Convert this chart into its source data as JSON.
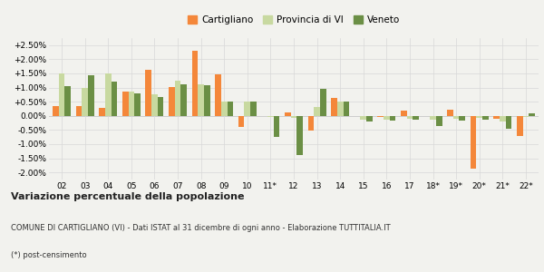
{
  "years": [
    "02",
    "03",
    "04",
    "05",
    "06",
    "07",
    "08",
    "09",
    "10",
    "11*",
    "12",
    "13",
    "14",
    "15",
    "16",
    "17",
    "18*",
    "19*",
    "20*",
    "21*",
    "22*"
  ],
  "cartigliano": [
    0.35,
    0.35,
    0.28,
    0.85,
    1.62,
    1.02,
    2.3,
    1.47,
    -0.4,
    0.0,
    0.13,
    -0.52,
    0.65,
    0.0,
    -0.05,
    0.2,
    0.0,
    0.23,
    -1.87,
    -0.1,
    -0.72
  ],
  "provincia": [
    1.5,
    1.0,
    1.5,
    0.85,
    0.75,
    1.25,
    1.1,
    0.52,
    0.5,
    -0.05,
    -0.08,
    0.3,
    0.5,
    -0.15,
    -0.15,
    -0.1,
    -0.12,
    -0.1,
    -0.08,
    -0.2,
    -0.05
  ],
  "veneto": [
    1.05,
    1.45,
    1.2,
    0.8,
    0.68,
    1.1,
    1.08,
    0.5,
    0.5,
    -0.75,
    -1.4,
    0.95,
    0.5,
    -0.2,
    -0.18,
    -0.12,
    -0.35,
    -0.18,
    -0.15,
    -0.45,
    0.08
  ],
  "color_cartigliano": "#f4873a",
  "color_provincia": "#c8d9a0",
  "color_veneto": "#6b8f45",
  "background": "#f2f2ee",
  "grid_color": "#d8d8d8",
  "title_bold": "Variazione percentuale della popolazione",
  "subtitle": "COMUNE DI CARTIGLIANO (VI) - Dati ISTAT al 31 dicembre di ogni anno - Elaborazione TUTTITALIA.IT",
  "footnote": "(*) post-censimento",
  "ylim": [
    -2.25,
    2.75
  ],
  "yticks": [
    -2.0,
    -1.5,
    -1.0,
    -0.5,
    0.0,
    0.5,
    1.0,
    1.5,
    2.0,
    2.5
  ]
}
